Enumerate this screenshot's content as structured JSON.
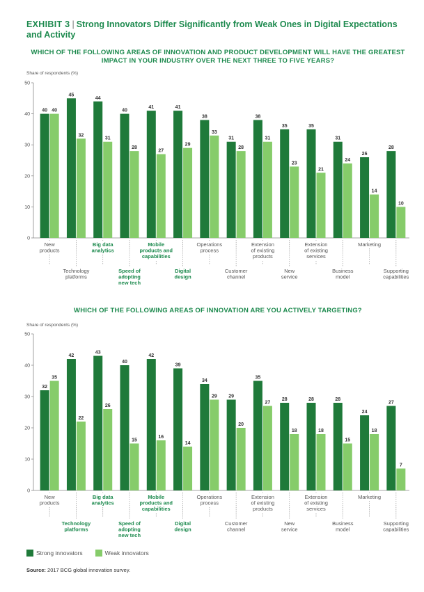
{
  "header": {
    "exhibit_label": "EXHIBIT 3",
    "title": "Strong Innovators Differ Significantly from Weak Ones in Digital Expectations and Activity"
  },
  "colors": {
    "strong": "#1f7a3a",
    "weak": "#86cc6a",
    "accent": "#1d8a4e"
  },
  "chart_data": [
    {
      "type": "bar",
      "title": "WHICH OF THE FOLLOWING AREAS OF INNOVATION AND PRODUCT DEVELOPMENT WILL HAVE THE GREATEST IMPACT IN YOUR INDUSTRY OVER THE NEXT THREE TO FIVE YEARS?",
      "ylabel": "Share of respondents (%)",
      "ylim": [
        0,
        50
      ],
      "yticks": [
        0,
        10,
        20,
        30,
        40,
        50
      ],
      "categories": [
        [
          "New",
          "products"
        ],
        [
          "Technology",
          "platforms"
        ],
        [
          "Big data",
          "analytics"
        ],
        [
          "Speed of",
          "adopting",
          "new tech"
        ],
        [
          "Mobile",
          "products and",
          "capabilities"
        ],
        [
          "Digital",
          "design"
        ],
        [
          "Operations",
          "process"
        ],
        [
          "Customer",
          "channel"
        ],
        [
          "Extension",
          "of existing",
          "products"
        ],
        [
          "New",
          "service"
        ],
        [
          "Extension",
          "of existing",
          "services"
        ],
        [
          "Business",
          "model"
        ],
        [
          "Marketing"
        ],
        [
          "Supporting",
          "capabilities"
        ]
      ],
      "highlight_categories": [
        2,
        3,
        4,
        5
      ],
      "series": [
        {
          "name": "Strong innovators",
          "values": [
            40,
            45,
            44,
            40,
            41,
            41,
            38,
            31,
            38,
            35,
            35,
            31,
            26,
            28
          ]
        },
        {
          "name": "Weak innovators",
          "values": [
            40,
            32,
            31,
            28,
            27,
            29,
            33,
            28,
            31,
            23,
            21,
            24,
            14,
            10
          ]
        }
      ],
      "grid": false
    },
    {
      "type": "bar",
      "title": "WHICH OF THE FOLLOWING AREAS OF INNOVATION ARE YOU ACTIVELY TARGETING?",
      "ylabel": "Share of respondents (%)",
      "ylim": [
        0,
        50
      ],
      "yticks": [
        0,
        10,
        20,
        30,
        40,
        50
      ],
      "categories": [
        [
          "New",
          "products"
        ],
        [
          "Technology",
          "platforms"
        ],
        [
          "Big data",
          "analytics"
        ],
        [
          "Speed of",
          "adopting",
          "new tech"
        ],
        [
          "Mobile",
          "products and",
          "capabilities"
        ],
        [
          "Digital",
          "design"
        ],
        [
          "Operations",
          "process"
        ],
        [
          "Customer",
          "channel"
        ],
        [
          "Extension",
          "of existing",
          "products"
        ],
        [
          "New",
          "service"
        ],
        [
          "Extension",
          "of existing",
          "services"
        ],
        [
          "Business",
          "model"
        ],
        [
          "Marketing"
        ],
        [
          "Supporting",
          "capabilities"
        ]
      ],
      "highlight_categories": [
        1,
        2,
        3,
        4,
        5
      ],
      "series": [
        {
          "name": "Strong innovators",
          "values": [
            32,
            42,
            43,
            40,
            42,
            39,
            34,
            29,
            35,
            28,
            28,
            28,
            24,
            27
          ]
        },
        {
          "name": "Weak innovators",
          "values": [
            35,
            22,
            26,
            15,
            16,
            14,
            29,
            20,
            27,
            18,
            18,
            15,
            18,
            7
          ]
        }
      ],
      "grid": false
    }
  ],
  "legend": {
    "strong": "Strong innovators",
    "weak": "Weak innovators",
    "position": "bottom-left"
  },
  "source": {
    "label": "Source:",
    "text": "2017 BCG global innovation survey."
  }
}
